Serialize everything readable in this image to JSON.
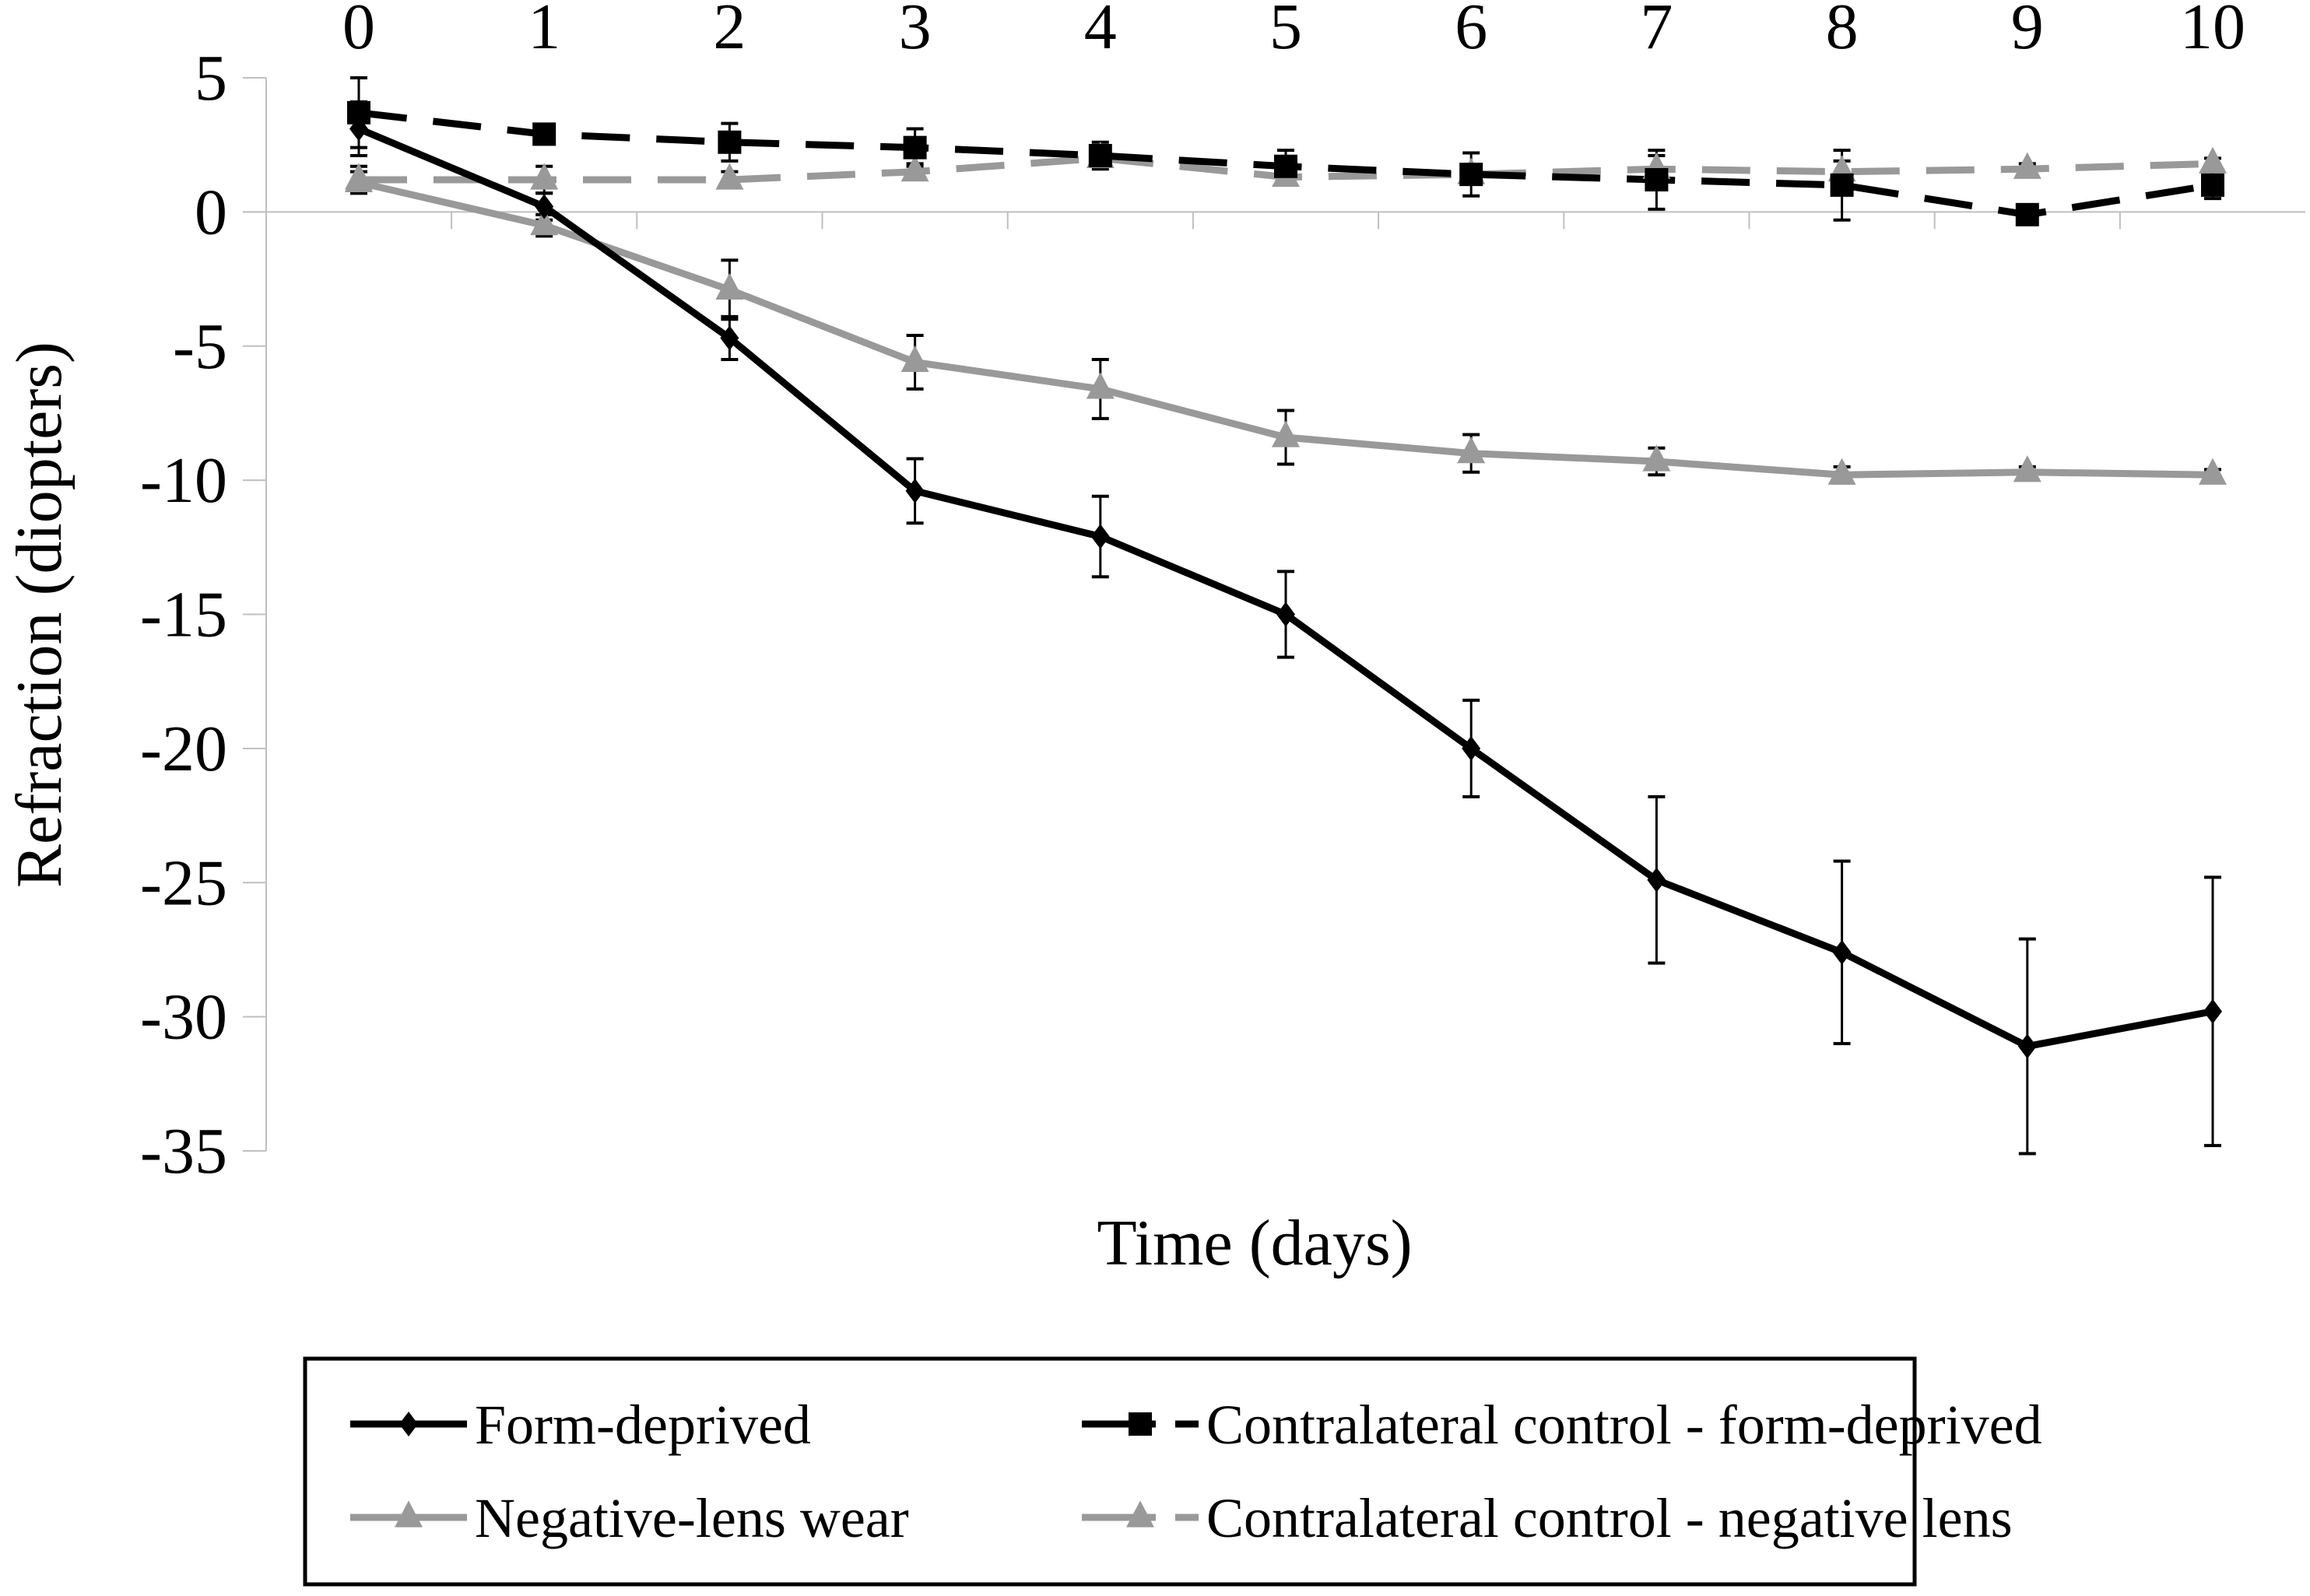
{
  "chart_data": {
    "type": "line",
    "title": "",
    "xlabel": "Time (days)",
    "ylabel": "Refraction (diopters)",
    "x": [
      0,
      1,
      2,
      3,
      4,
      5,
      6,
      7,
      8,
      9,
      10
    ],
    "x_tick_labels": [
      "0",
      "1",
      "2",
      "3",
      "4",
      "5",
      "6",
      "7",
      "8",
      "9",
      "10"
    ],
    "x_axis_position": "top",
    "xlim": [
      0,
      10
    ],
    "ylim": [
      -35,
      5
    ],
    "y_ticks": [
      5,
      0,
      -5,
      -10,
      -15,
      -20,
      -25,
      -30,
      -35
    ],
    "y_tick_labels": [
      "5",
      "0",
      "-5",
      "-10",
      "-15",
      "-20",
      "-25",
      "-30",
      "-35"
    ],
    "grid": false,
    "legend_position": "bottom",
    "series": [
      {
        "name": "Form-deprived",
        "color": "#000000",
        "dash": "solid",
        "marker": "diamond",
        "values": [
          3.1,
          0.2,
          -4.7,
          -10.4,
          -12.1,
          -15.0,
          -20.0,
          -24.9,
          -27.6,
          -31.1,
          -29.8
        ],
        "error": [
          1.0,
          0.5,
          0.8,
          1.2,
          1.5,
          1.6,
          1.8,
          3.1,
          3.4,
          4.0,
          5.0
        ]
      },
      {
        "name": "Contralateral control - form-deprived",
        "color": "#000000",
        "dash": "dashed",
        "marker": "square",
        "values": [
          3.7,
          2.9,
          2.6,
          2.4,
          2.1,
          1.7,
          1.4,
          1.2,
          1.0,
          -0.1,
          1.0
        ],
        "error": [
          1.3,
          0.2,
          0.7,
          0.7,
          0.5,
          0.6,
          0.8,
          1.1,
          1.3,
          0.3,
          0.5
        ]
      },
      {
        "name": "Negative-lens wear",
        "color": "#999999",
        "dash": "solid",
        "marker": "triangle",
        "values": [
          1.1,
          -0.5,
          -2.9,
          -5.6,
          -6.6,
          -8.4,
          -9.0,
          -9.3,
          -9.8,
          -9.7,
          -9.8
        ],
        "error": [
          0.4,
          0.4,
          1.1,
          1.0,
          1.1,
          1.0,
          0.7,
          0.5,
          0.3,
          0.2,
          0.2
        ]
      },
      {
        "name": "Contralateral control - negative lens",
        "color": "#999999",
        "dash": "dashed",
        "marker": "triangle",
        "values": [
          1.2,
          1.2,
          1.2,
          1.5,
          2.0,
          1.3,
          1.4,
          1.6,
          1.5,
          1.6,
          1.8
        ],
        "error": [
          0.5,
          0.5,
          0.3,
          0.3,
          0.3,
          0.3,
          0.3,
          0.5,
          0.4,
          0.2,
          0.2
        ]
      }
    ],
    "legend": [
      "Form-deprived",
      "Contralateral control - form-deprived",
      "Negative-lens wear",
      "Contralateral control - negative lens"
    ]
  }
}
